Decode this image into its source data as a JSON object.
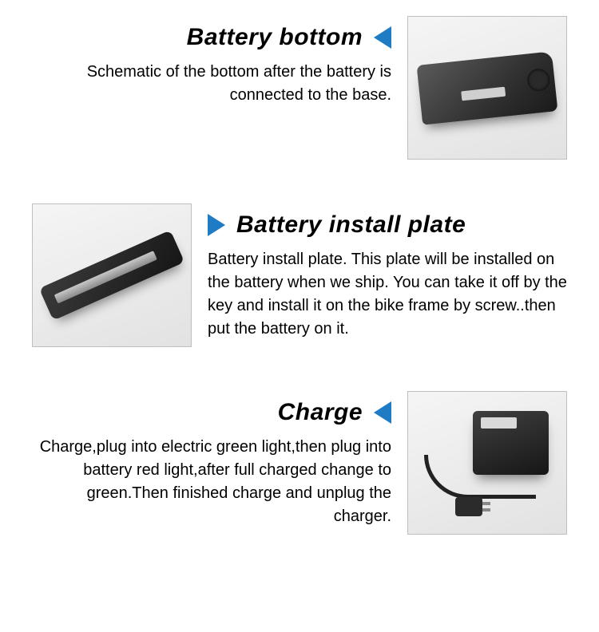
{
  "accent_color": "#1f7cc4",
  "sections": [
    {
      "key": "battery_bottom",
      "title": "Battery bottom",
      "desc": "Schematic of the bottom after the battery is connected to the base.",
      "image_side": "right",
      "arrow_dir": "left"
    },
    {
      "key": "install_plate",
      "title": "Battery install plate",
      "desc": "Battery install plate. This plate will be installed on the battery when we ship. You can take it off by the key and install it on the bike frame by screw..then put the battery on it.",
      "image_side": "left",
      "arrow_dir": "right"
    },
    {
      "key": "charge",
      "title": "Charge",
      "desc": "Charge,plug into electric green light,then plug into battery red light,after full charged change to green.Then finished charge and unplug the charger.",
      "image_side": "right",
      "arrow_dir": "left"
    }
  ]
}
